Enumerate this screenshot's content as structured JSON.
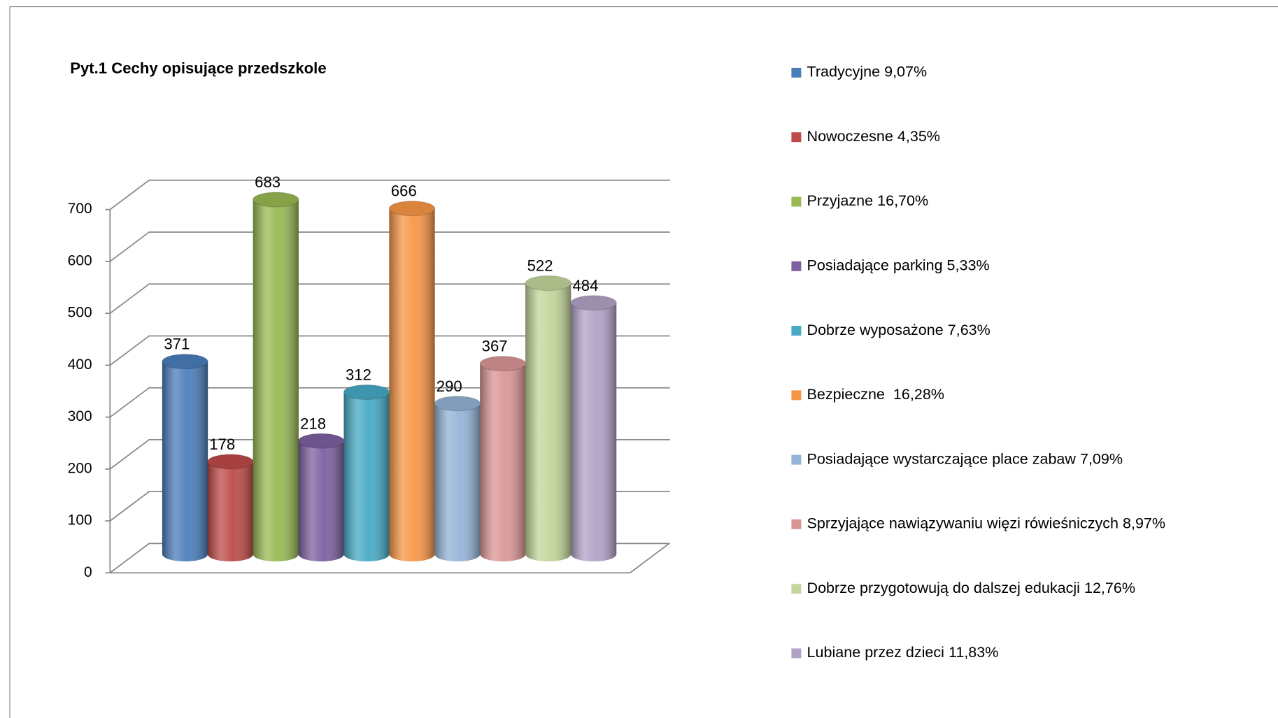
{
  "chart_data": {
    "type": "bar3d",
    "title": "Pyt.1 Cechy opisujące przedszkole",
    "categories": [
      "Tradycyjne 9,07%",
      "Nowoczesne 4,35%",
      "Przyjazne 16,70%",
      "Posiadające parking 5,33%",
      "Dobrze wyposażone 7,63%",
      "Bezpieczne  16,28%",
      "Posiadające wystarczające place zabaw 7,09%",
      "Sprzyjające nawiązywaniu więzi rówieśniczych 8,97%",
      "Dobrze przygotowują do dalszej edukacji 12,76%",
      "Lubiane przez dzieci 11,83%"
    ],
    "values": [
      371,
      178,
      683,
      218,
      312,
      666,
      290,
      367,
      522,
      484
    ],
    "colors": [
      "#4a7ebb",
      "#be4b48",
      "#98b954",
      "#7d60a0",
      "#46aac5",
      "#f79646",
      "#95b3d7",
      "#d99694",
      "#c3d69b",
      "#b3a2c7"
    ],
    "ylim": [
      0,
      700
    ],
    "yticks": [
      0,
      100,
      200,
      300,
      400,
      500,
      600,
      700
    ],
    "grid": true,
    "legend": "right"
  }
}
